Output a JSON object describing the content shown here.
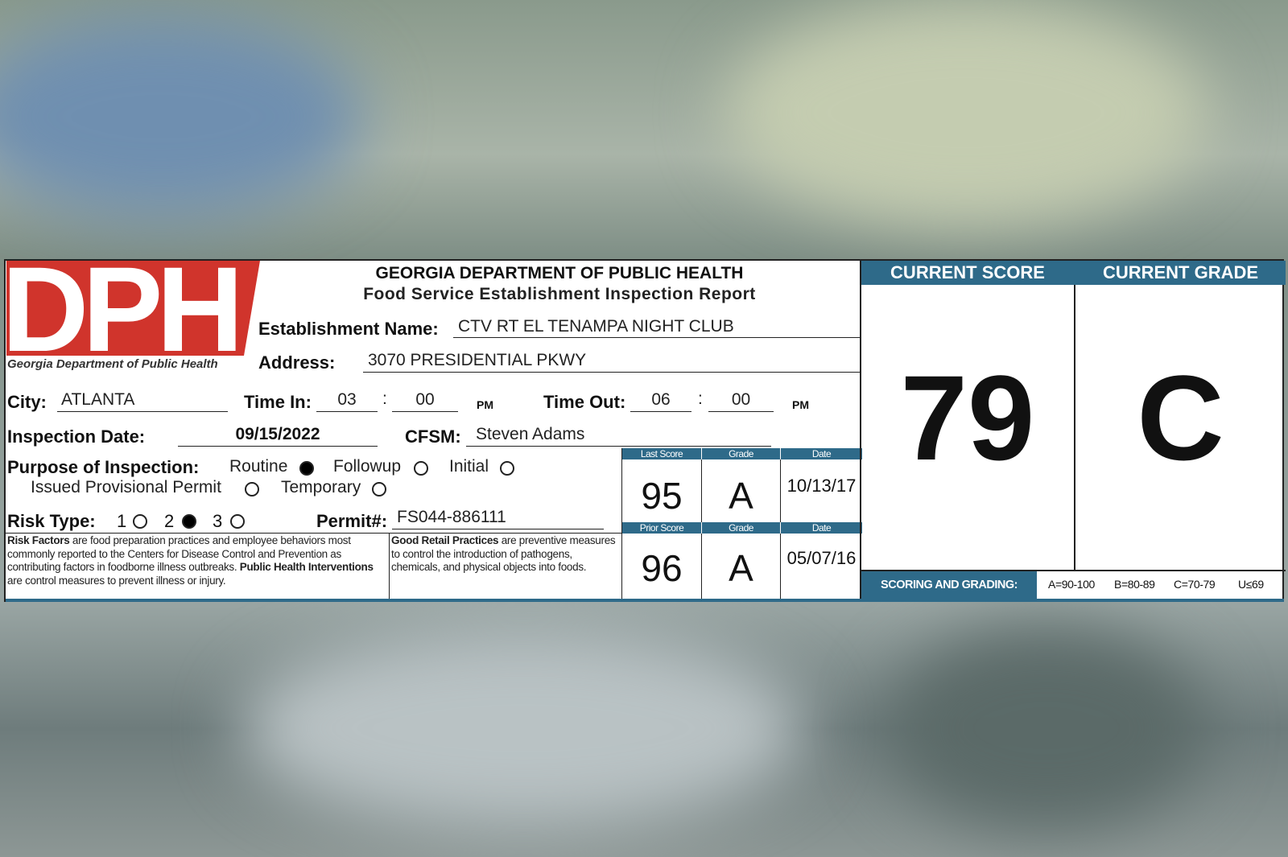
{
  "header": {
    "line1": "GEORGIA DEPARTMENT OF PUBLIC HEALTH",
    "line2": "Food Service Establishment Inspection Report"
  },
  "logo": {
    "letters": "DPH",
    "caption": "Georgia Department of Public Health",
    "color": "#d0342c"
  },
  "fields": {
    "establishment_label": "Establishment Name:",
    "establishment": "CTV RT EL TENAMPA NIGHT CLUB",
    "address_label": "Address:",
    "address": "3070 PRESIDENTIAL PKWY",
    "city_label": "City:",
    "city": "ATLANTA",
    "time_in_label": "Time In:",
    "time_in_h": "03",
    "time_in_m": "00",
    "time_in_ampm": "PM",
    "time_out_label": "Time Out:",
    "time_out_h": "06",
    "time_out_m": "00",
    "time_out_ampm": "PM",
    "colon": ":",
    "date_label": "Inspection Date:",
    "date": "09/15/2022",
    "cfsm_label": "CFSM:",
    "cfsm": "Steven Adams",
    "purpose_label": "Purpose of Inspection:",
    "purpose_options": [
      "Routine",
      "Followup",
      "Initial",
      "Issued Provisional Permit",
      "Temporary"
    ],
    "purpose_selected": "Routine",
    "risk_label": "Risk Type:",
    "risk_options": [
      "1",
      "2",
      "3"
    ],
    "risk_selected": "2",
    "permit_label": "Permit#:",
    "permit": "FS044-886111"
  },
  "notes": {
    "risk_bold": "Risk Factors",
    "risk_text": " are food preparation practices and employee behaviors most commonly reported to the Centers for Disease Control and Prevention as contributing factors in foodborne illness outbreaks. ",
    "phi_bold": "Public Health Interventions",
    "phi_text": " are control measures to prevent illness or injury.",
    "grp_bold": "Good Retail Practices",
    "grp_text": " are preventive measures to control the introduction of pathogens, chemicals, and physical objects into foods."
  },
  "history": {
    "last": {
      "score_label": "Last Score",
      "grade_label": "Grade",
      "date_label": "Date",
      "score": "95",
      "grade": "A",
      "date": "10/13/17"
    },
    "prior": {
      "score_label": "Prior Score",
      "grade_label": "Grade",
      "date_label": "Date",
      "score": "96",
      "grade": "A",
      "date": "05/07/16"
    }
  },
  "current": {
    "score_label": "CURRENT SCORE",
    "grade_label": "CURRENT GRADE",
    "score": "79",
    "grade": "C"
  },
  "scoring": {
    "label": "SCORING AND GRADING:",
    "scale": [
      "A=90-100",
      "B=80-89",
      "C=70-79",
      "U≤69"
    ]
  },
  "colors": {
    "accent": "#2e6a89",
    "logo_red": "#d0342c"
  }
}
